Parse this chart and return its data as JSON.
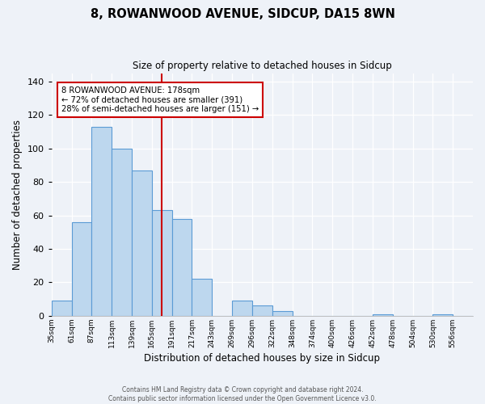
{
  "title": "8, ROWANWOOD AVENUE, SIDCUP, DA15 8WN",
  "subtitle": "Size of property relative to detached houses in Sidcup",
  "xlabel": "Distribution of detached houses by size in Sidcup",
  "ylabel": "Number of detached properties",
  "bar_labels": [
    "35sqm",
    "61sqm",
    "87sqm",
    "113sqm",
    "139sqm",
    "165sqm",
    "191sqm",
    "217sqm",
    "243sqm",
    "269sqm",
    "296sqm",
    "322sqm",
    "348sqm",
    "374sqm",
    "400sqm",
    "426sqm",
    "452sqm",
    "478sqm",
    "504sqm",
    "530sqm",
    "556sqm"
  ],
  "bar_values": [
    9,
    56,
    113,
    100,
    87,
    63,
    58,
    22,
    0,
    9,
    6,
    3,
    0,
    0,
    0,
    0,
    1,
    0,
    0,
    1,
    0
  ],
  "bar_color": "#bdd7ee",
  "bar_edge_color": "#5b9bd5",
  "annotation_title": "8 ROWANWOOD AVENUE: 178sqm",
  "annotation_line1": "← 72% of detached houses are smaller (391)",
  "annotation_line2": "28% of semi-detached houses are larger (151) →",
  "annotation_box_color": "#ffffff",
  "annotation_border_color": "#cc0000",
  "vline_color": "#cc0000",
  "footer1": "Contains HM Land Registry data © Crown copyright and database right 2024.",
  "footer2": "Contains public sector information licensed under the Open Government Licence v3.0.",
  "vline_index": 5.5,
  "ylim_min": 0,
  "ylim_max": 145,
  "yticks": [
    0,
    20,
    40,
    60,
    80,
    100,
    120,
    140
  ],
  "bg_color": "#eef2f8"
}
